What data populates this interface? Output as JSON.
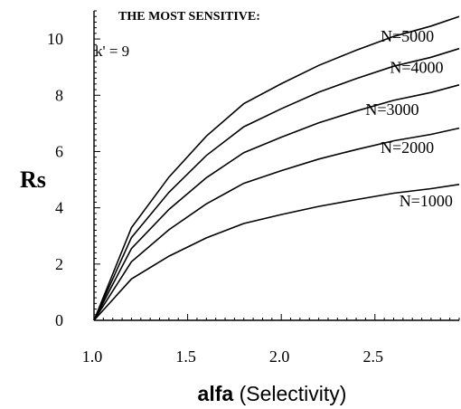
{
  "chart_data": {
    "type": "line",
    "title": "THE MOST SENSITIVE:",
    "annotation": "k' = 9",
    "xlabel": {
      "bold": "alfa",
      "rest": " (Selectivity)"
    },
    "ylabel": "Rs",
    "xlim": [
      1.0,
      2.95
    ],
    "ylim": [
      0,
      11
    ],
    "x_ticks": [
      {
        "value": 1.0,
        "label": "1.0"
      },
      {
        "value": 1.5,
        "label": "1.5"
      },
      {
        "value": 2.0,
        "label": "2.0"
      },
      {
        "value": 2.5,
        "label": "2.5"
      }
    ],
    "y_ticks": [
      {
        "value": 0,
        "label": "0"
      },
      {
        "value": 2,
        "label": "2"
      },
      {
        "value": 4,
        "label": "4"
      },
      {
        "value": 6,
        "label": "6"
      },
      {
        "value": 8,
        "label": "8"
      },
      {
        "value": 10,
        "label": "10"
      }
    ],
    "x": [
      1.0,
      1.2,
      1.4,
      1.6,
      1.8,
      2.0,
      2.2,
      2.4,
      2.6,
      2.8,
      2.95
    ],
    "series": [
      {
        "name": "N=1000",
        "values": [
          0.0,
          1.47,
          2.28,
          2.93,
          3.44,
          3.76,
          4.05,
          4.29,
          4.52,
          4.68,
          4.83
        ]
      },
      {
        "name": "N=2000",
        "values": [
          0.0,
          2.08,
          3.22,
          4.14,
          4.87,
          5.32,
          5.73,
          6.07,
          6.38,
          6.61,
          6.83
        ]
      },
      {
        "name": "N=3000",
        "values": [
          0.0,
          2.55,
          3.94,
          5.07,
          5.96,
          6.51,
          7.02,
          7.44,
          7.82,
          8.1,
          8.37
        ]
      },
      {
        "name": "N=4000",
        "values": [
          0.0,
          2.94,
          4.55,
          5.86,
          6.88,
          7.52,
          8.11,
          8.59,
          9.03,
          9.35,
          9.66
        ]
      },
      {
        "name": "N=5000",
        "values": [
          0.0,
          3.29,
          5.09,
          6.55,
          7.7,
          8.41,
          9.06,
          9.6,
          10.09,
          10.46,
          10.8
        ]
      }
    ],
    "series_labels_placement": "right end of each curve",
    "grid": false,
    "legend": "none",
    "line_color": "#000000"
  }
}
